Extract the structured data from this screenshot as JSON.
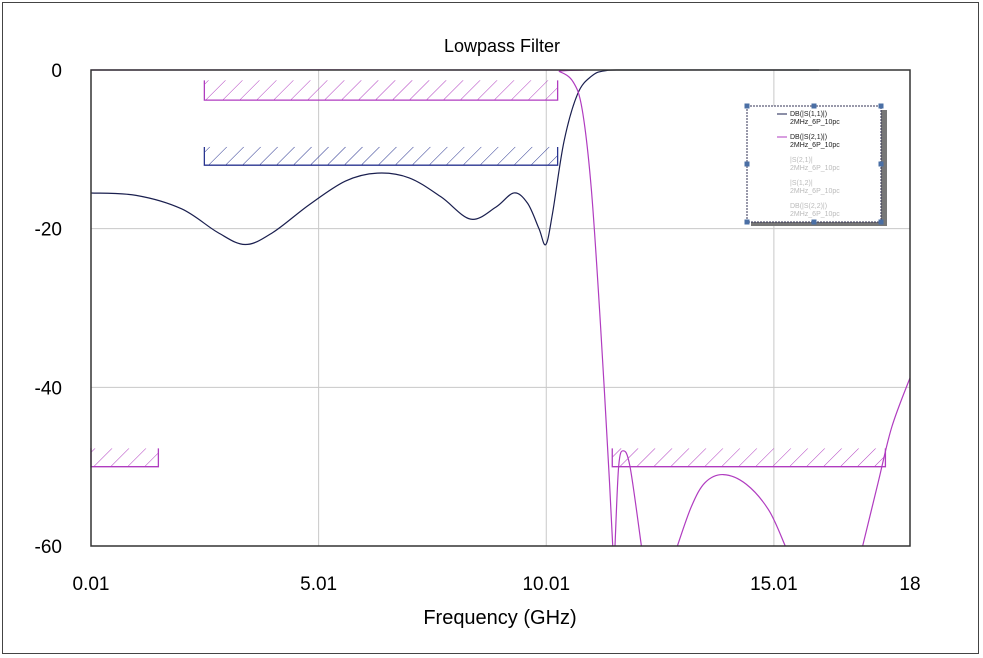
{
  "chart_data": {
    "type": "line",
    "title": "Lowpass Filter",
    "xlabel": "Frequency (GHz)",
    "ylabel": "",
    "xlim": [
      0.01,
      18
    ],
    "ylim": [
      -60,
      0
    ],
    "xticks": [
      "0.01",
      "5.01",
      "10.01",
      "15.01",
      "18"
    ],
    "xtick_values": [
      0.01,
      5.01,
      10.01,
      15.01,
      18
    ],
    "yticks": [
      "0",
      "-20",
      "-40",
      "-60"
    ],
    "ytick_values": [
      0,
      -20,
      -40,
      -60
    ],
    "grid": true,
    "legend_placement": "top-right",
    "series": [
      {
        "name": "DB(|S(1,1)|)",
        "sub": "2MHz_6P_10pc",
        "color": "#1a1f4f",
        "segments": [
          [
            [
              0.01,
              -15.5
            ],
            [
              1,
              -15.8
            ],
            [
              2,
              -17.5
            ],
            [
              2.8,
              -20.5
            ],
            [
              3.4,
              -22
            ],
            [
              4,
              -20.5
            ],
            [
              4.8,
              -17
            ],
            [
              5.6,
              -14
            ],
            [
              6.3,
              -13
            ],
            [
              7,
              -13.6
            ],
            [
              7.7,
              -16
            ],
            [
              8.35,
              -18.8
            ],
            [
              8.9,
              -17.3
            ],
            [
              9.3,
              -15.5
            ],
            [
              9.6,
              -16.8
            ],
            [
              9.85,
              -20
            ],
            [
              10,
              -22
            ],
            [
              10.15,
              -18
            ],
            [
              10.4,
              -9
            ],
            [
              10.7,
              -3
            ],
            [
              11,
              -0.8
            ],
            [
              11.3,
              -0.1
            ],
            [
              12,
              0
            ],
            [
              16,
              0
            ]
          ]
        ]
      },
      {
        "name": "DB(|S(2,1)|)",
        "sub": "2MHz_6P_10pc",
        "color": "#b03cc0",
        "segments": [
          [
            [
              0.01,
              0
            ],
            [
              10,
              0
            ],
            [
              10.3,
              -0.2
            ],
            [
              10.6,
              -1.5
            ],
            [
              10.8,
              -5
            ],
            [
              11,
              -15
            ],
            [
              11.2,
              -32
            ],
            [
              11.4,
              -52
            ],
            [
              11.47,
              -60
            ]
          ],
          [
            [
              11.52,
              -60
            ],
            [
              11.6,
              -50
            ],
            [
              11.7,
              -48
            ],
            [
              11.85,
              -50
            ],
            [
              12.1,
              -60
            ]
          ],
          [
            [
              12.89,
              -60
            ],
            [
              13.2,
              -55
            ],
            [
              13.5,
              -52
            ],
            [
              13.9,
              -51
            ],
            [
              14.4,
              -52.2
            ],
            [
              14.9,
              -55.5
            ],
            [
              15.26,
              -60
            ]
          ],
          [
            [
              16.96,
              -60
            ],
            [
              17.3,
              -52
            ],
            [
              17.6,
              -45
            ],
            [
              18,
              -38.8
            ]
          ]
        ]
      },
      {
        "name": "|S(2,1)|",
        "sub": "2MHz_6P_10pc",
        "color": "#bbbbbb",
        "segments": []
      },
      {
        "name": "|S(1,2)|",
        "sub": "2MHz_6P_10pc",
        "color": "#bbbbbb",
        "segments": []
      },
      {
        "name": "DB(|S(2,2)|)",
        "sub": "2MHz_6P_10pc",
        "color": "#bbbbbb",
        "segments": []
      }
    ],
    "masks": [
      {
        "color": "#b03cc0",
        "x": [
          2.5,
          10.26
        ],
        "y": [
          -3.8,
          -1.3
        ]
      },
      {
        "color": "#2a3590",
        "x": [
          2.5,
          10.26
        ],
        "y": [
          -12,
          -9.7
        ]
      },
      {
        "color": "#b03cc0",
        "x": [
          0.01,
          1.49
        ],
        "y": [
          -50,
          -47.7
        ]
      },
      {
        "color": "#b03cc0",
        "x": [
          11.46,
          17.46
        ],
        "y": [
          -50,
          -47.7
        ]
      }
    ]
  }
}
